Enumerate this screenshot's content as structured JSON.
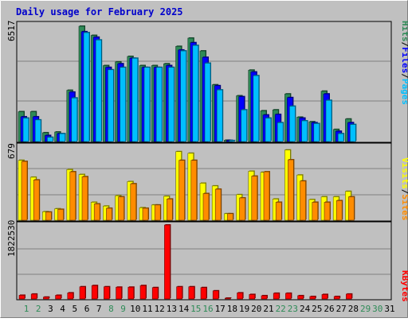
{
  "title": "Daily usage for February 2025",
  "colors": {
    "background": "#c0c0c0",
    "title": "#0000cc",
    "hits": "#2e8b57",
    "files": "#0000ff",
    "pages": "#00bfff",
    "visits": "#ffff00",
    "sites": "#ff8c00",
    "kbytes": "#ff0000",
    "weekday_label": "#000000",
    "weekend_label": "#2e8b57"
  },
  "chart_data": [
    {
      "type": "bar",
      "panel": "traffic",
      "max_label": "6517",
      "ymax": 6517,
      "legend": [
        "Pages",
        "Files",
        "Hits"
      ],
      "x": [
        1,
        2,
        3,
        4,
        5,
        6,
        7,
        8,
        9,
        10,
        11,
        12,
        13,
        14,
        15,
        16,
        17,
        18,
        19,
        20,
        21,
        22,
        23,
        24,
        25,
        26,
        27,
        28,
        29,
        30,
        31
      ],
      "series": [
        {
          "name": "Hits",
          "values": [
            1630,
            1630,
            480,
            520,
            2800,
            6300,
            5800,
            4150,
            4350,
            4650,
            4150,
            4150,
            4250,
            5200,
            5650,
            4950,
            3100,
            70,
            2500,
            3900,
            1680,
            1730,
            2600,
            1330,
            1080,
            2750,
            660,
            1230,
            0,
            0,
            0
          ]
        },
        {
          "name": "Files",
          "values": [
            1350,
            1350,
            330,
            430,
            2700,
            6000,
            5700,
            4050,
            4250,
            4550,
            4050,
            4050,
            4150,
            5000,
            5400,
            4600,
            3050,
            60,
            2450,
            3800,
            1450,
            1480,
            2400,
            1280,
            1030,
            2600,
            560,
            1030,
            0,
            0,
            0
          ]
        },
        {
          "name": "Pages",
          "values": [
            1280,
            1180,
            230,
            430,
            2380,
            5950,
            5550,
            3920,
            4050,
            4550,
            4050,
            4050,
            4050,
            4950,
            5250,
            4280,
            2820,
            50,
            1730,
            3600,
            1280,
            1030,
            1930,
            1130,
            980,
            2250,
            430,
            930,
            0,
            0,
            0
          ]
        }
      ]
    },
    {
      "type": "bar",
      "panel": "visitors",
      "max_label": "679",
      "ymax": 679,
      "legend": [
        "Sites",
        "Visits"
      ],
      "x": [
        1,
        2,
        3,
        4,
        5,
        6,
        7,
        8,
        9,
        10,
        11,
        12,
        13,
        14,
        15,
        16,
        17,
        18,
        19,
        20,
        21,
        22,
        23,
        24,
        25,
        26,
        27,
        28,
        29,
        30,
        31
      ],
      "series": [
        {
          "name": "Visits",
          "values": [
            550,
            395,
            78,
            105,
            465,
            420,
            165,
            130,
            225,
            355,
            115,
            140,
            220,
            630,
            615,
            340,
            315,
            60,
            235,
            450,
            440,
            195,
            645,
            415,
            190,
            215,
            215,
            265,
            0,
            0,
            0
          ]
        },
        {
          "name": "Sites",
          "values": [
            540,
            370,
            75,
            100,
            445,
            400,
            150,
            110,
            215,
            335,
            110,
            140,
            195,
            550,
            550,
            245,
            285,
            60,
            205,
            405,
            445,
            165,
            555,
            360,
            165,
            165,
            180,
            215,
            0,
            0,
            0
          ]
        }
      ]
    },
    {
      "type": "bar",
      "panel": "kbytes",
      "max_label": "1822530",
      "ymax": 1822530,
      "legend": [
        "KBytes"
      ],
      "x": [
        1,
        2,
        3,
        4,
        5,
        6,
        7,
        8,
        9,
        10,
        11,
        12,
        13,
        14,
        15,
        16,
        17,
        18,
        19,
        20,
        21,
        22,
        23,
        24,
        25,
        26,
        27,
        28,
        29,
        30,
        31
      ],
      "series": [
        {
          "name": "KBytes",
          "values": [
            90000,
            120000,
            45000,
            90000,
            150000,
            300000,
            330000,
            300000,
            290000,
            290000,
            330000,
            280000,
            1822530,
            300000,
            300000,
            280000,
            200000,
            20000,
            150000,
            110000,
            80000,
            140000,
            140000,
            80000,
            60000,
            110000,
            60000,
            120000,
            0,
            0,
            0
          ]
        }
      ]
    }
  ],
  "weekend_days": [
    1,
    2,
    8,
    9,
    15,
    16,
    22,
    23,
    29,
    30
  ]
}
